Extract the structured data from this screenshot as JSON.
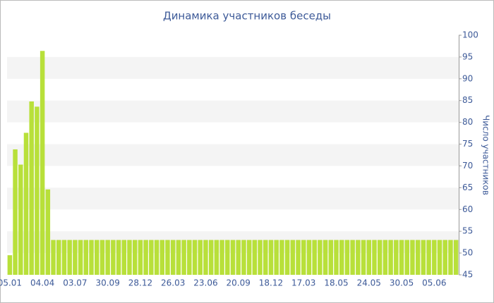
{
  "chart_data": {
    "type": "bar",
    "title": "Динамика участников беседы",
    "y_label": "Число участников",
    "categories": [
      "05.01",
      null,
      null,
      null,
      null,
      null,
      "04.04",
      null,
      null,
      null,
      null,
      null,
      "03.07",
      null,
      null,
      null,
      null,
      null,
      "30.09",
      null,
      null,
      null,
      null,
      null,
      "28.12",
      null,
      null,
      null,
      null,
      null,
      "26.03",
      null,
      null,
      null,
      null,
      null,
      "23.06",
      null,
      null,
      null,
      null,
      null,
      "20.09",
      null,
      null,
      null,
      null,
      null,
      "18.12",
      null,
      null,
      null,
      null,
      null,
      "17.03",
      null,
      null,
      null,
      null,
      null,
      "18.05",
      null,
      null,
      null,
      null,
      null,
      "24.05",
      null,
      null,
      null,
      null,
      null,
      "30.05",
      null,
      null,
      null,
      null,
      null,
      "05.06",
      null,
      null,
      null,
      null
    ],
    "values": [
      49.5,
      73.8,
      70.3,
      77.6,
      84.8,
      83.6,
      96.4,
      64.6,
      53,
      53,
      53,
      53,
      53,
      53,
      53,
      53,
      53,
      53,
      53,
      53,
      53,
      53,
      53,
      53,
      53,
      53,
      53,
      53,
      53,
      53,
      53,
      53,
      53,
      53,
      53,
      53,
      53,
      53,
      53,
      53,
      53,
      53,
      53,
      53,
      53,
      53,
      53,
      53,
      53,
      53,
      53,
      53,
      53,
      53,
      53,
      53,
      53,
      53,
      53,
      53,
      53,
      53,
      53,
      53,
      53,
      53,
      53,
      53,
      53,
      53,
      53,
      53,
      53,
      53,
      53,
      53,
      53,
      53,
      53,
      53,
      53,
      53,
      53
    ],
    "color": "#b8e03a",
    "ylim": [
      45,
      100
    ],
    "yticks": [
      45,
      50,
      55,
      60,
      65,
      70,
      75,
      80,
      85,
      90,
      95,
      100
    ],
    "grid": true
  }
}
